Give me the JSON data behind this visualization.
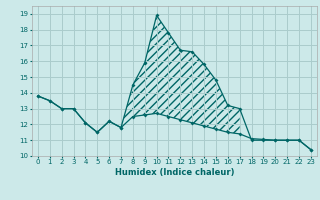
{
  "xlabel": "Humidex (Indice chaleur)",
  "bg_color": "#cce9e9",
  "grid_color": "#aacccc",
  "line_color": "#006666",
  "xlim": [
    -0.5,
    23.5
  ],
  "ylim": [
    10,
    19.5
  ],
  "yticks": [
    10,
    11,
    12,
    13,
    14,
    15,
    16,
    17,
    18,
    19
  ],
  "xticks": [
    0,
    1,
    2,
    3,
    4,
    5,
    6,
    7,
    8,
    9,
    10,
    11,
    12,
    13,
    14,
    15,
    16,
    17,
    18,
    19,
    20,
    21,
    22,
    23
  ],
  "line1_x": [
    0,
    1,
    2,
    3,
    4,
    5,
    6,
    7,
    8,
    9,
    10,
    11,
    12,
    13,
    14,
    15,
    16,
    17,
    18,
    19,
    20,
    21,
    22,
    23
  ],
  "line1_y": [
    13.8,
    13.5,
    13.0,
    13.0,
    12.1,
    11.5,
    12.2,
    11.8,
    14.5,
    15.9,
    18.9,
    17.8,
    16.7,
    16.6,
    15.8,
    14.8,
    13.2,
    13.0,
    11.0,
    11.0,
    11.0,
    11.0,
    11.0,
    10.4
  ],
  "line2_x": [
    0,
    1,
    2,
    3,
    4,
    5,
    6,
    7,
    8,
    9,
    10,
    11,
    12,
    13,
    14,
    15,
    16,
    17,
    18,
    19,
    20,
    21,
    22,
    23
  ],
  "line2_y": [
    13.8,
    13.5,
    13.0,
    13.0,
    12.1,
    11.5,
    12.2,
    11.8,
    12.5,
    12.6,
    12.7,
    12.5,
    12.3,
    12.1,
    11.9,
    11.7,
    11.5,
    11.4,
    11.1,
    11.05,
    11.0,
    11.0,
    11.0,
    10.4
  ]
}
